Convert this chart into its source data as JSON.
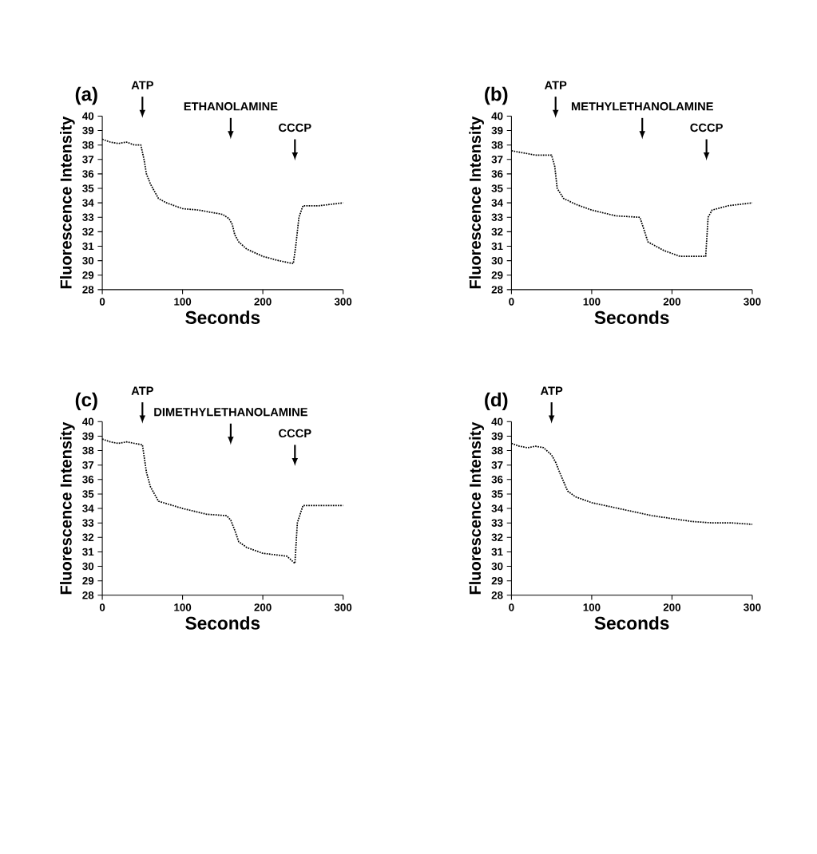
{
  "chart_data": [
    {
      "type": "line",
      "title": "(a)",
      "xlabel": "Seconds",
      "ylabel": "Fluorescence Intensity",
      "xlim": [
        0,
        300
      ],
      "ylim": [
        28,
        40
      ],
      "xticks": [
        0,
        100,
        200,
        300
      ],
      "yticks": [
        28,
        29,
        30,
        31,
        32,
        33,
        34,
        35,
        36,
        37,
        38,
        39,
        40
      ],
      "line_style": "dotted",
      "series": [
        {
          "color": "#000000",
          "x": [
            0,
            10,
            20,
            30,
            40,
            48,
            52,
            55,
            60,
            70,
            80,
            100,
            120,
            150,
            158,
            162,
            165,
            170,
            180,
            200,
            220,
            238,
            241,
            245,
            250,
            270,
            300
          ],
          "values": [
            38.4,
            38.2,
            38.1,
            38.2,
            38.0,
            38.0,
            37.0,
            36.0,
            35.3,
            34.3,
            34.0,
            33.6,
            33.5,
            33.2,
            32.9,
            32.5,
            31.8,
            31.3,
            30.8,
            30.3,
            30.0,
            29.8,
            31.0,
            33.0,
            33.8,
            33.8,
            34.0
          ]
        }
      ],
      "ref_lines": [
        {
          "axis": "x",
          "value": 50,
          "label": "ATP"
        },
        {
          "axis": "x",
          "value": 160,
          "label": "ETHANOLAMINE"
        },
        {
          "axis": "x",
          "value": 240,
          "label": "CCCP"
        }
      ]
    },
    {
      "type": "line",
      "title": "(b)",
      "xlabel": "Seconds",
      "ylabel": "Fluorescence Intensity",
      "xlim": [
        0,
        300
      ],
      "ylim": [
        28,
        40
      ],
      "xticks": [
        0,
        100,
        200,
        300
      ],
      "yticks": [
        28,
        29,
        30,
        31,
        32,
        33,
        34,
        35,
        36,
        37,
        38,
        39,
        40
      ],
      "line_style": "dotted",
      "series": [
        {
          "color": "#000000",
          "x": [
            0,
            10,
            20,
            30,
            40,
            50,
            54,
            57,
            65,
            80,
            100,
            130,
            160,
            163,
            166,
            170,
            190,
            210,
            230,
            242,
            245,
            250,
            270,
            300
          ],
          "values": [
            37.6,
            37.5,
            37.4,
            37.3,
            37.3,
            37.3,
            36.5,
            35.0,
            34.3,
            33.9,
            33.5,
            33.1,
            33.0,
            32.5,
            32.0,
            31.3,
            30.7,
            30.3,
            30.3,
            30.3,
            33.0,
            33.5,
            33.8,
            34.0
          ]
        }
      ],
      "ref_lines": [
        {
          "axis": "x",
          "value": 55,
          "label": "ATP"
        },
        {
          "axis": "x",
          "value": 163,
          "label": "METHYLETHANOLAMINE"
        },
        {
          "axis": "x",
          "value": 243,
          "label": "CCCP"
        }
      ]
    },
    {
      "type": "line",
      "title": "(c)",
      "xlabel": "Seconds",
      "ylabel": "Fluorescence Intensity",
      "xlim": [
        0,
        300
      ],
      "ylim": [
        28,
        40
      ],
      "xticks": [
        0,
        100,
        200,
        300
      ],
      "yticks": [
        28,
        29,
        30,
        31,
        32,
        33,
        34,
        35,
        36,
        37,
        38,
        39,
        40
      ],
      "line_style": "dotted",
      "series": [
        {
          "color": "#000000",
          "x": [
            0,
            10,
            20,
            30,
            40,
            50,
            55,
            60,
            70,
            100,
            130,
            155,
            160,
            165,
            170,
            180,
            200,
            230,
            240,
            243,
            250,
            270,
            300
          ],
          "values": [
            38.8,
            38.6,
            38.5,
            38.6,
            38.5,
            38.4,
            36.5,
            35.5,
            34.5,
            34.0,
            33.6,
            33.5,
            33.2,
            32.5,
            31.7,
            31.3,
            30.9,
            30.7,
            30.2,
            33.0,
            34.2,
            34.2,
            34.2
          ]
        }
      ],
      "ref_lines": [
        {
          "axis": "x",
          "value": 50,
          "label": "ATP"
        },
        {
          "axis": "x",
          "value": 160,
          "label": "DIMETHYLETHANOLAMINE"
        },
        {
          "axis": "x",
          "value": 240,
          "label": "CCCP"
        }
      ]
    },
    {
      "type": "line",
      "title": "(d)",
      "xlabel": "Seconds",
      "ylabel": "Fluorescence Intensity",
      "xlim": [
        0,
        300
      ],
      "ylim": [
        28,
        40
      ],
      "xticks": [
        0,
        100,
        200,
        300
      ],
      "yticks": [
        28,
        29,
        30,
        31,
        32,
        33,
        34,
        35,
        36,
        37,
        38,
        39,
        40
      ],
      "line_style": "dotted",
      "series": [
        {
          "color": "#000000",
          "x": [
            0,
            10,
            20,
            30,
            40,
            50,
            55,
            60,
            70,
            80,
            100,
            125,
            150,
            175,
            200,
            225,
            250,
            275,
            300
          ],
          "values": [
            38.5,
            38.3,
            38.2,
            38.3,
            38.2,
            37.7,
            37.2,
            36.5,
            35.2,
            34.8,
            34.4,
            34.1,
            33.8,
            33.5,
            33.3,
            33.1,
            33.0,
            33.0,
            32.9
          ]
        }
      ],
      "ref_lines": [
        {
          "axis": "x",
          "value": 50,
          "label": "ATP"
        }
      ]
    }
  ]
}
